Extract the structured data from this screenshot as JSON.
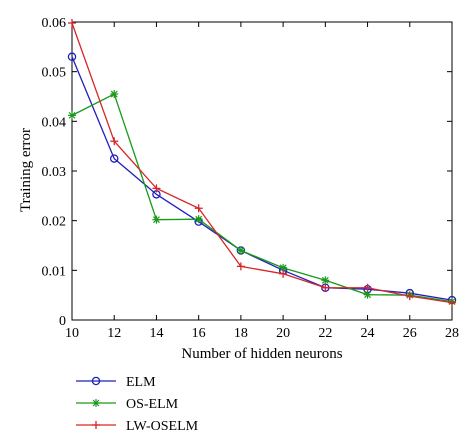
{
  "chart_data": {
    "type": "line",
    "title": "",
    "xlabel": "Number of hidden neurons",
    "ylabel": "Training error",
    "xlim": [
      10,
      28
    ],
    "ylim": [
      0,
      0.06
    ],
    "x_ticks": [
      "10",
      "12",
      "14",
      "16",
      "18",
      "20",
      "22",
      "24",
      "26",
      "28"
    ],
    "y_ticks": [
      "0",
      "0.01",
      "0.02",
      "0.03",
      "0.04",
      "0.05",
      "0.06"
    ],
    "x": [
      10,
      12,
      14,
      16,
      18,
      20,
      22,
      24,
      26,
      28
    ],
    "grid": false,
    "legend_position": "below",
    "series": [
      {
        "name": "ELM",
        "marker": "circle",
        "color": "#1f1fbf",
        "values": [
          0.053,
          0.0325,
          0.0253,
          0.0198,
          0.014,
          0.01,
          0.0065,
          0.0062,
          0.0054,
          0.004
        ]
      },
      {
        "name": "OS-ELM",
        "marker": "star",
        "color": "#1a9a1a",
        "values": [
          0.0412,
          0.0455,
          0.0202,
          0.0203,
          0.014,
          0.0105,
          0.008,
          0.0051,
          0.005,
          0.0037
        ]
      },
      {
        "name": "LW-OSELM",
        "marker": "plus",
        "color": "#d62728",
        "values": [
          0.0598,
          0.036,
          0.0265,
          0.0225,
          0.0108,
          0.0093,
          0.0065,
          0.0065,
          0.0048,
          0.0035
        ]
      }
    ]
  }
}
